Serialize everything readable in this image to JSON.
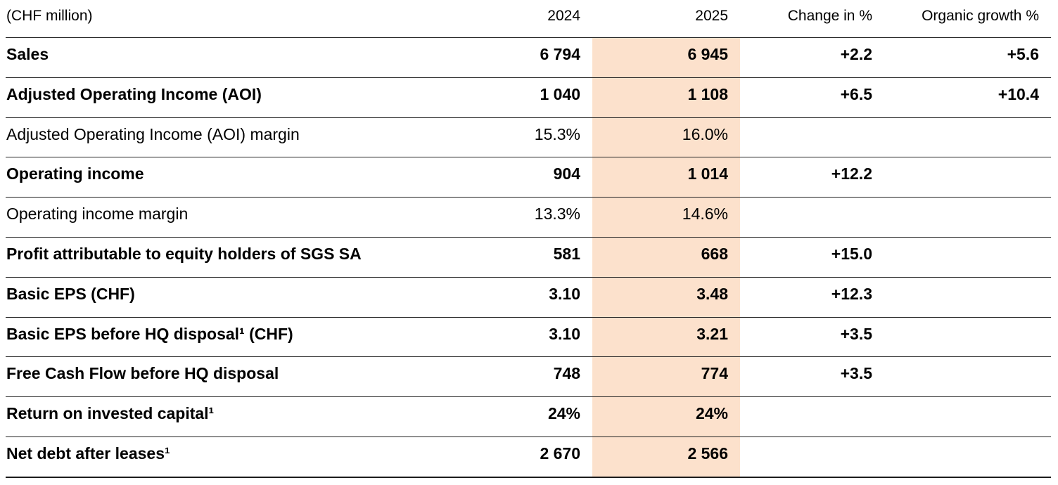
{
  "table": {
    "unit_label": "(CHF million)",
    "highlight_color": "#fce1cc",
    "columns": {
      "col_2024": "2024",
      "col_2025": "2025",
      "change": "Change in %",
      "organic": "Organic growth %"
    },
    "rows": [
      {
        "label": "Sales",
        "bold": true,
        "y2024": "6 794",
        "y2025": "6 945",
        "change": "+2.2",
        "organic": "+5.6"
      },
      {
        "label": "Adjusted Operating Income (AOI)",
        "bold": true,
        "y2024": "1 040",
        "y2025": "1 108",
        "change": "+6.5",
        "organic": "+10.4"
      },
      {
        "label": "Adjusted Operating Income (AOI) margin",
        "bold": false,
        "y2024": "15.3%",
        "y2025": "16.0%",
        "change": "",
        "organic": ""
      },
      {
        "label": "Operating income",
        "bold": true,
        "y2024": "904",
        "y2025": "1 014",
        "change": "+12.2",
        "organic": ""
      },
      {
        "label": "Operating income margin",
        "bold": false,
        "y2024": "13.3%",
        "y2025": "14.6%",
        "change": "",
        "organic": ""
      },
      {
        "label": "Profit attributable to equity holders of SGS SA",
        "bold": true,
        "y2024": "581",
        "y2025": "668",
        "change": "+15.0",
        "organic": ""
      },
      {
        "label": "Basic EPS (CHF)",
        "bold": true,
        "y2024": "3.10",
        "y2025": "3.48",
        "change": "+12.3",
        "organic": ""
      },
      {
        "label": "Basic EPS before HQ disposal¹ (CHF)",
        "bold": true,
        "y2024": "3.10",
        "y2025": "3.21",
        "change": "+3.5",
        "organic": ""
      },
      {
        "label": "Free Cash Flow before HQ disposal",
        "bold": true,
        "y2024": "748",
        "y2025": "774",
        "change": "+3.5",
        "organic": ""
      },
      {
        "label": "Return on invested capital¹",
        "bold": true,
        "y2024": "24%",
        "y2025": "24%",
        "change": "",
        "organic": ""
      },
      {
        "label": "Net debt after leases¹",
        "bold": true,
        "y2024": "2 670",
        "y2025": "2 566",
        "change": "",
        "organic": ""
      }
    ]
  }
}
